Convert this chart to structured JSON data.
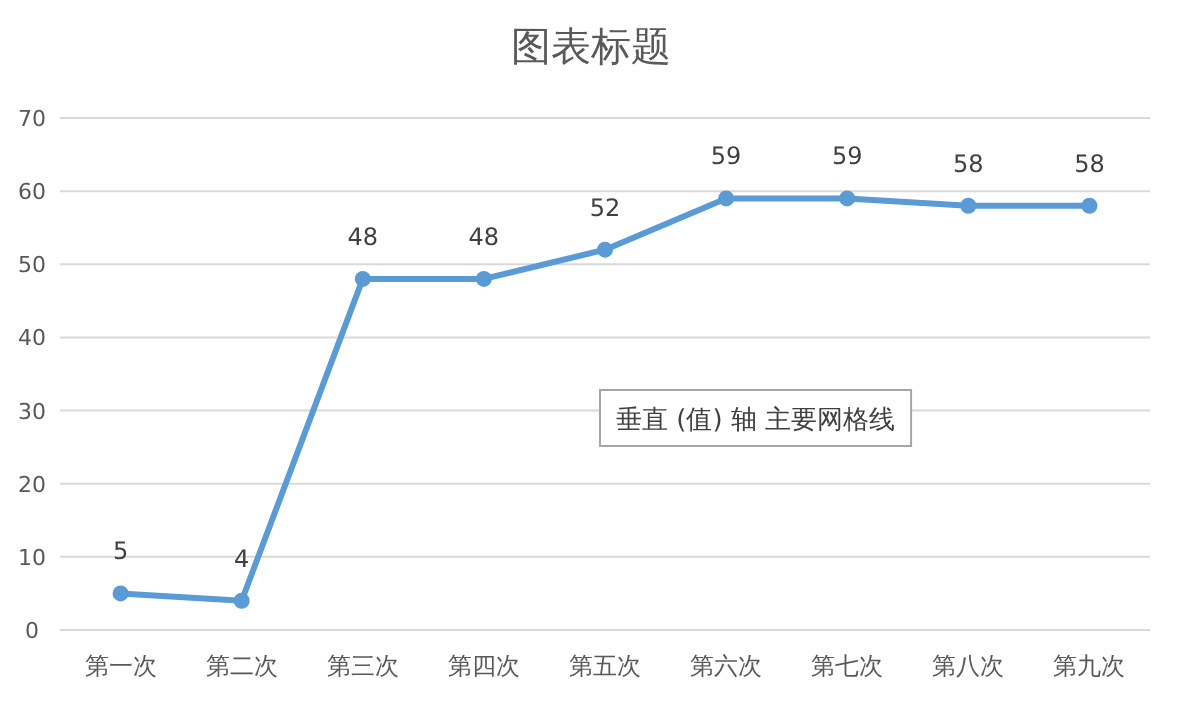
{
  "chart_data": {
    "type": "line",
    "title": "图表标题",
    "categories": [
      "第一次",
      "第二次",
      "第三次",
      "第四次",
      "第五次",
      "第六次",
      "第七次",
      "第八次",
      "第九次"
    ],
    "series": [
      {
        "color": "#5b9bd5",
        "values": [
          5,
          4,
          48,
          48,
          52,
          59,
          59,
          58,
          58
        ]
      }
    ],
    "ylim": [
      0,
      70
    ],
    "yticks": [
      0,
      10,
      20,
      30,
      40,
      50,
      60,
      70
    ],
    "grid": "y",
    "marker": "circle",
    "line_style": "solid",
    "data_labels": true,
    "annotations": [
      "垂直 (值) 轴 主要网格线"
    ]
  }
}
